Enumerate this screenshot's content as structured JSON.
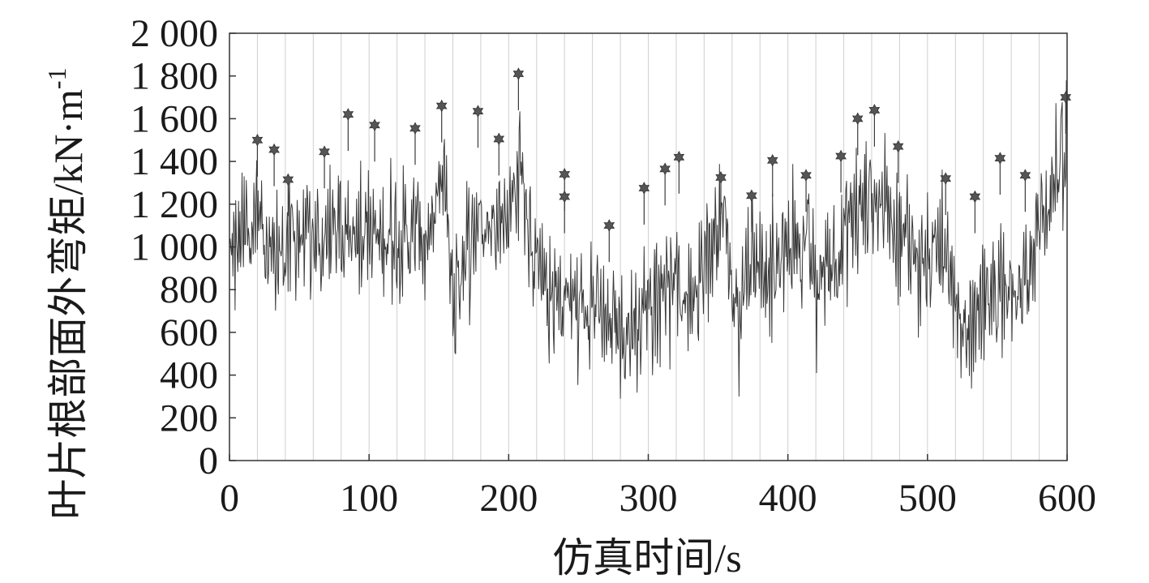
{
  "chart_data": {
    "type": "line",
    "title": "",
    "xlabel": "仿真时间/s",
    "ylabel": "叶片根部面外弯矩/kN·m",
    "ylabel_sup": "-1",
    "xlim": [
      0,
      600
    ],
    "ylim": [
      0,
      2000
    ],
    "x_ticks": [
      0,
      100,
      200,
      300,
      400,
      500,
      600
    ],
    "x_tick_labels": [
      "0",
      "100",
      "200",
      "300",
      "400",
      "500",
      "600"
    ],
    "y_ticks": [
      0,
      200,
      400,
      600,
      800,
      1000,
      1200,
      1400,
      1600,
      1800,
      2000
    ],
    "y_tick_labels": [
      "0",
      "200",
      "400",
      "600",
      "800",
      "1 000",
      "1 200",
      "1 400",
      "1 600",
      "1 800",
      "2 000"
    ],
    "grid": "vertical lines every 20 s",
    "grid_interval": 20,
    "legend": "none",
    "colors": {
      "line": "#3a3a3a",
      "marker": "#555555",
      "grid": "#cfcfcf",
      "axis": "#333333"
    },
    "series": [
      {
        "kind": "line",
        "x": [
          0,
          5,
          10,
          15,
          20,
          25,
          30,
          35,
          40,
          45,
          50,
          55,
          60,
          65,
          70,
          75,
          80,
          85,
          90,
          95,
          100,
          105,
          110,
          115,
          120,
          125,
          130,
          135,
          140,
          145,
          150,
          155,
          160,
          165,
          170,
          175,
          180,
          185,
          190,
          195,
          200,
          205,
          210,
          215,
          220,
          225,
          230,
          235,
          240,
          245,
          250,
          255,
          260,
          265,
          270,
          275,
          280,
          285,
          290,
          295,
          300,
          305,
          310,
          315,
          320,
          325,
          330,
          335,
          340,
          345,
          350,
          355,
          360,
          365,
          370,
          375,
          380,
          385,
          390,
          395,
          400,
          405,
          410,
          415,
          420,
          425,
          430,
          435,
          440,
          445,
          450,
          455,
          460,
          465,
          470,
          475,
          480,
          485,
          490,
          495,
          500,
          505,
          510,
          515,
          520,
          525,
          530,
          535,
          540,
          545,
          550,
          555,
          560,
          565,
          570,
          575,
          580,
          585,
          590,
          595,
          600
        ],
        "y": [
          950,
          1000,
          1050,
          1100,
          1200,
          1050,
          1000,
          950,
          1000,
          1050,
          1050,
          1050,
          1050,
          1000,
          1050,
          1100,
          1050,
          1050,
          1100,
          1100,
          1100,
          1050,
          1000,
          1100,
          1050,
          1050,
          1050,
          1100,
          1000,
          1100,
          1250,
          1300,
          700,
          900,
          1000,
          1050,
          1200,
          1100,
          1100,
          1150,
          1150,
          1300,
          1400,
          1100,
          900,
          800,
          750,
          750,
          780,
          750,
          780,
          750,
          750,
          700,
          600,
          650,
          600,
          600,
          650,
          650,
          800,
          800,
          850,
          850,
          850,
          750,
          800,
          850,
          900,
          1000,
          1100,
          1100,
          800,
          700,
          900,
          950,
          950,
          900,
          850,
          950,
          1000,
          1050,
          1050,
          1000,
          800,
          900,
          950,
          900,
          1050,
          1150,
          1150,
          1200,
          1300,
          1200,
          1250,
          1150,
          1050,
          1050,
          1000,
          900,
          900,
          950,
          1000,
          950,
          700,
          600,
          600,
          700,
          750,
          800,
          800,
          900,
          800,
          700,
          900,
          950,
          1100,
          1200,
          1300,
          1400,
          1450
        ]
      },
      {
        "kind": "peak-markers",
        "x": [
          20,
          32,
          42,
          68,
          85,
          104,
          133,
          152,
          178,
          193,
          207,
          240,
          240,
          272,
          297,
          312,
          322,
          352,
          374,
          389,
          413,
          438,
          450,
          462,
          479,
          513,
          534,
          552,
          570,
          599
        ],
        "y": [
          1500,
          1455,
          1315,
          1445,
          1620,
          1570,
          1555,
          1660,
          1635,
          1505,
          1810,
          1340,
          1235,
          1100,
          1275,
          1365,
          1420,
          1325,
          1240,
          1405,
          1335,
          1425,
          1600,
          1640,
          1470,
          1320,
          1235,
          1415,
          1335,
          1700
        ]
      }
    ]
  }
}
